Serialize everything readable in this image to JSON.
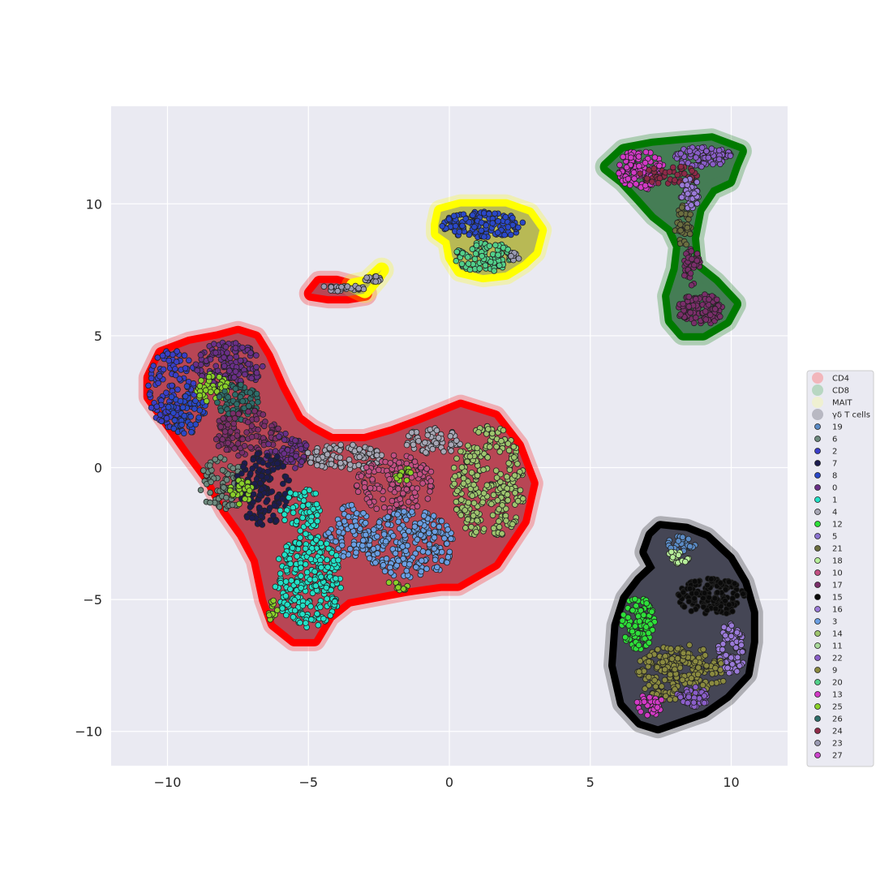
{
  "chart_data": {
    "type": "scatter",
    "title": "",
    "xlabel": "",
    "ylabel": "",
    "xlim": [
      -12,
      12
    ],
    "ylim": [
      -11.3,
      13.7
    ],
    "xticks": [
      -10,
      -5,
      0,
      5,
      10
    ],
    "yticks": [
      -10,
      -5,
      0,
      5,
      10
    ],
    "xtick_labels": [
      "−10",
      "−5",
      "0",
      "5",
      "10"
    ],
    "ytick_labels": [
      "−10",
      "−5",
      "0",
      "5",
      "10"
    ],
    "grid": true,
    "legend_position": "right",
    "outline_groups": [
      {
        "name": "CD4",
        "color": "#ff0000",
        "legend_swatch": "#f2b6bb"
      },
      {
        "name": "CD8",
        "color": "#007a00",
        "legend_swatch": "#b8d7c2"
      },
      {
        "name": "MAIT",
        "color": "#ffff00",
        "legend_swatch": "#eff0d2"
      },
      {
        "name": "γδ T cells",
        "color": "#000000",
        "legend_swatch": "#b8b8c2"
      }
    ],
    "clusters": [
      {
        "name": "19",
        "color": "#5b8bc6"
      },
      {
        "name": "6",
        "color": "#6d8a7e"
      },
      {
        "name": "2",
        "color": "#3a3ec8"
      },
      {
        "name": "7",
        "color": "#1c1c50"
      },
      {
        "name": "8",
        "color": "#2a48c8"
      },
      {
        "name": "0",
        "color": "#6a2f88"
      },
      {
        "name": "1",
        "color": "#22e0c6"
      },
      {
        "name": "4",
        "color": "#a7a7b5"
      },
      {
        "name": "12",
        "color": "#2ee03a"
      },
      {
        "name": "5",
        "color": "#8a72d0"
      },
      {
        "name": "21",
        "color": "#6b6e40"
      },
      {
        "name": "18",
        "color": "#b6ee9a"
      },
      {
        "name": "10",
        "color": "#c24e82"
      },
      {
        "name": "17",
        "color": "#7a2e6a"
      },
      {
        "name": "15",
        "color": "#0a0a0a"
      },
      {
        "name": "16",
        "color": "#9a7ad8"
      },
      {
        "name": "3",
        "color": "#6a9ee2"
      },
      {
        "name": "14",
        "color": "#9ec46e"
      },
      {
        "name": "11",
        "color": "#a8d89a"
      },
      {
        "name": "22",
        "color": "#8a5ec8"
      },
      {
        "name": "9",
        "color": "#8a8a40"
      },
      {
        "name": "20",
        "color": "#52d08a"
      },
      {
        "name": "13",
        "color": "#d23ac6"
      },
      {
        "name": "25",
        "color": "#8ad02a"
      },
      {
        "name": "26",
        "color": "#2e6e6a"
      },
      {
        "name": "24",
        "color": "#8e2a48"
      },
      {
        "name": "23",
        "color": "#9a9ab2"
      },
      {
        "name": "27",
        "color": "#cc44cc"
      }
    ],
    "regions": [
      {
        "group": "CD4",
        "outline": [
          [
            -10.6,
            3.4
          ],
          [
            -10.2,
            4.3
          ],
          [
            -9.2,
            4.7
          ],
          [
            -8.2,
            4.9
          ],
          [
            -7.5,
            5.1
          ],
          [
            -6.9,
            4.9
          ],
          [
            -6.5,
            4.2
          ],
          [
            -6.0,
            3.0
          ],
          [
            -5.4,
            1.8
          ],
          [
            -4.9,
            1.4
          ],
          [
            -4.2,
            1.0
          ],
          [
            -3.0,
            1.0
          ],
          [
            -2.0,
            1.3
          ],
          [
            -1.0,
            1.7
          ],
          [
            0.4,
            2.3
          ],
          [
            1.6,
            1.9
          ],
          [
            2.4,
            0.8
          ],
          [
            2.9,
            -0.6
          ],
          [
            2.6,
            -2.0
          ],
          [
            1.6,
            -3.6
          ],
          [
            0.3,
            -4.4
          ],
          [
            -0.3,
            -4.4
          ],
          [
            -1.6,
            -4.6
          ],
          [
            -2.6,
            -4.8
          ],
          [
            -3.6,
            -5.0
          ],
          [
            -4.3,
            -5.6
          ],
          [
            -4.8,
            -6.5
          ],
          [
            -5.5,
            -6.5
          ],
          [
            -6.2,
            -5.9
          ],
          [
            -6.5,
            -5.0
          ],
          [
            -6.8,
            -3.5
          ],
          [
            -7.3,
            -2.5
          ],
          [
            -7.9,
            -1.6
          ],
          [
            -8.5,
            -0.4
          ],
          [
            -9.2,
            0.6
          ],
          [
            -10.0,
            1.8
          ],
          [
            -10.6,
            2.7
          ]
        ]
      },
      {
        "group": "CD4",
        "outline": [
          [
            -4.9,
            6.6
          ],
          [
            -4.6,
            7.0
          ],
          [
            -4.0,
            7.0
          ],
          [
            -3.3,
            6.8
          ],
          [
            -3.0,
            6.6
          ],
          [
            -3.6,
            6.5
          ],
          [
            -4.3,
            6.5
          ]
        ]
      },
      {
        "group": "MAIT",
        "outline": [
          [
            -3.4,
            6.9
          ],
          [
            -2.9,
            7.0
          ],
          [
            -2.4,
            7.5
          ],
          [
            -2.6,
            7.2
          ],
          [
            -3.0,
            6.7
          ]
        ]
      },
      {
        "group": "MAIT",
        "outline": [
          [
            -0.4,
            9.2
          ],
          [
            -0.3,
            9.7
          ],
          [
            0.4,
            9.9
          ],
          [
            1.2,
            9.9
          ],
          [
            2.0,
            9.9
          ],
          [
            2.8,
            9.6
          ],
          [
            3.2,
            9.0
          ],
          [
            3.0,
            8.2
          ],
          [
            2.6,
            7.8
          ],
          [
            2.0,
            7.4
          ],
          [
            1.2,
            7.3
          ],
          [
            0.4,
            7.5
          ],
          [
            0.1,
            8.0
          ],
          [
            0.0,
            8.6
          ],
          [
            -0.4,
            8.9
          ]
        ]
      },
      {
        "group": "CD8",
        "outline": [
          [
            5.6,
            11.4
          ],
          [
            6.2,
            12.0
          ],
          [
            7.2,
            12.2
          ],
          [
            8.2,
            12.3
          ],
          [
            9.3,
            12.4
          ],
          [
            10.3,
            12.0
          ],
          [
            10.1,
            11.5
          ],
          [
            9.9,
            10.9
          ],
          [
            9.3,
            10.6
          ],
          [
            8.8,
            9.8
          ],
          [
            8.6,
            8.7
          ],
          [
            8.7,
            7.6
          ],
          [
            9.4,
            7.0
          ],
          [
            10.1,
            6.2
          ],
          [
            9.8,
            5.6
          ],
          [
            9.0,
            5.1
          ],
          [
            8.3,
            5.1
          ],
          [
            7.9,
            5.6
          ],
          [
            7.8,
            6.5
          ],
          [
            8.1,
            7.5
          ],
          [
            8.2,
            8.4
          ],
          [
            7.9,
            9.1
          ],
          [
            7.3,
            9.6
          ],
          [
            6.8,
            10.2
          ],
          [
            6.2,
            10.9
          ]
        ]
      },
      {
        "group": "γδ T cells",
        "outline": [
          [
            7.2,
            -2.6
          ],
          [
            7.5,
            -2.3
          ],
          [
            8.4,
            -2.4
          ],
          [
            9.1,
            -2.7
          ],
          [
            9.9,
            -3.5
          ],
          [
            10.4,
            -4.4
          ],
          [
            10.7,
            -5.5
          ],
          [
            10.7,
            -6.6
          ],
          [
            10.5,
            -7.8
          ],
          [
            9.8,
            -8.6
          ],
          [
            9.0,
            -9.2
          ],
          [
            8.2,
            -9.5
          ],
          [
            7.4,
            -9.8
          ],
          [
            6.8,
            -9.6
          ],
          [
            6.2,
            -8.9
          ],
          [
            5.9,
            -7.5
          ],
          [
            6.0,
            -6.0
          ],
          [
            6.3,
            -5.0
          ],
          [
            6.8,
            -4.3
          ],
          [
            7.3,
            -3.8
          ],
          [
            7.0,
            -3.2
          ]
        ]
      }
    ],
    "blobs": [
      {
        "cluster": "2",
        "cx": -9.8,
        "cy": 3.0,
        "rx": 0.9,
        "ry": 1.5,
        "n": 130
      },
      {
        "cluster": "8",
        "cx": -9.3,
        "cy": 2.2,
        "rx": 0.7,
        "ry": 1.0,
        "n": 60
      },
      {
        "cluster": "0",
        "cx": -7.8,
        "cy": 3.9,
        "rx": 1.2,
        "ry": 0.9,
        "n": 150
      },
      {
        "cluster": "25",
        "cx": -8.4,
        "cy": 3.0,
        "rx": 0.6,
        "ry": 0.6,
        "n": 40
      },
      {
        "cluster": "26",
        "cx": -7.5,
        "cy": 2.5,
        "rx": 0.8,
        "ry": 0.7,
        "n": 70
      },
      {
        "cluster": "17",
        "cx": -7.2,
        "cy": 1.3,
        "rx": 1.2,
        "ry": 0.9,
        "n": 110
      },
      {
        "cluster": "0",
        "cx": -5.8,
        "cy": 0.6,
        "rx": 0.8,
        "ry": 0.7,
        "n": 70
      },
      {
        "cluster": "6",
        "cx": -8.0,
        "cy": -0.6,
        "rx": 0.9,
        "ry": 1.0,
        "n": 90
      },
      {
        "cluster": "7",
        "cx": -6.6,
        "cy": -0.8,
        "rx": 1.0,
        "ry": 1.4,
        "n": 140
      },
      {
        "cluster": "25",
        "cx": -7.4,
        "cy": -0.9,
        "rx": 0.4,
        "ry": 0.5,
        "n": 30
      },
      {
        "cluster": "4",
        "cx": -3.7,
        "cy": 0.4,
        "rx": 1.4,
        "ry": 0.5,
        "n": 100
      },
      {
        "cluster": "10",
        "cx": -1.9,
        "cy": -0.6,
        "rx": 1.4,
        "ry": 1.1,
        "n": 140
      },
      {
        "cluster": "4",
        "cx": -0.6,
        "cy": 1.0,
        "rx": 1.0,
        "ry": 0.5,
        "n": 60
      },
      {
        "cluster": "25",
        "cx": -1.6,
        "cy": -0.3,
        "rx": 0.3,
        "ry": 0.3,
        "n": 12
      },
      {
        "cluster": "14",
        "cx": 1.4,
        "cy": -0.6,
        "rx": 1.3,
        "ry": 2.2,
        "n": 260
      },
      {
        "cluster": "3",
        "cx": -1.4,
        "cy": -2.9,
        "rx": 1.6,
        "ry": 1.3,
        "n": 230
      },
      {
        "cluster": "3",
        "cx": -3.6,
        "cy": -2.4,
        "rx": 0.8,
        "ry": 1.0,
        "n": 70
      },
      {
        "cluster": "1",
        "cx": -5.0,
        "cy": -4.3,
        "rx": 1.2,
        "ry": 1.8,
        "n": 260
      },
      {
        "cluster": "1",
        "cx": -5.2,
        "cy": -1.6,
        "rx": 0.8,
        "ry": 0.8,
        "n": 60
      },
      {
        "cluster": "25",
        "cx": -6.3,
        "cy": -5.4,
        "rx": 0.2,
        "ry": 0.4,
        "n": 12
      },
      {
        "cluster": "25",
        "cx": -1.9,
        "cy": -4.5,
        "rx": 0.5,
        "ry": 0.2,
        "n": 12
      },
      {
        "cluster": "23",
        "cx": -3.8,
        "cy": 6.8,
        "rx": 0.8,
        "ry": 0.12,
        "n": 30
      },
      {
        "cluster": "23",
        "cx": -2.7,
        "cy": 7.1,
        "rx": 0.35,
        "ry": 0.2,
        "n": 12
      },
      {
        "cluster": "8",
        "cx": 1.2,
        "cy": 9.2,
        "rx": 1.5,
        "ry": 0.5,
        "n": 140
      },
      {
        "cluster": "20",
        "cx": 1.2,
        "cy": 8.0,
        "rx": 1.0,
        "ry": 0.6,
        "n": 110
      },
      {
        "cluster": "23",
        "cx": 2.3,
        "cy": 8.0,
        "rx": 0.35,
        "ry": 0.2,
        "n": 10
      },
      {
        "cluster": "13",
        "cx": 6.8,
        "cy": 11.3,
        "rx": 0.8,
        "ry": 0.8,
        "n": 110
      },
      {
        "cluster": "22",
        "cx": 9.0,
        "cy": 11.8,
        "rx": 1.0,
        "ry": 0.4,
        "n": 80
      },
      {
        "cluster": "24",
        "cx": 7.8,
        "cy": 11.1,
        "rx": 1.1,
        "ry": 0.35,
        "n": 50
      },
      {
        "cluster": "16",
        "cx": 8.6,
        "cy": 10.4,
        "rx": 0.4,
        "ry": 0.6,
        "n": 40
      },
      {
        "cluster": "21",
        "cx": 8.3,
        "cy": 9.2,
        "rx": 0.3,
        "ry": 0.8,
        "n": 40
      },
      {
        "cluster": "17",
        "cx": 8.6,
        "cy": 7.6,
        "rx": 0.3,
        "ry": 0.7,
        "n": 40
      },
      {
        "cluster": "17",
        "cx": 8.9,
        "cy": 6.0,
        "rx": 0.8,
        "ry": 0.6,
        "n": 110
      },
      {
        "cluster": "19",
        "cx": 8.2,
        "cy": -2.9,
        "rx": 0.6,
        "ry": 0.3,
        "n": 30
      },
      {
        "cluster": "18",
        "cx": 8.1,
        "cy": -3.4,
        "rx": 0.4,
        "ry": 0.3,
        "n": 20
      },
      {
        "cluster": "12",
        "cx": 6.7,
        "cy": -5.9,
        "rx": 0.6,
        "ry": 1.0,
        "n": 110
      },
      {
        "cluster": "15",
        "cx": 9.3,
        "cy": -4.9,
        "rx": 1.2,
        "ry": 0.7,
        "n": 140
      },
      {
        "cluster": "16",
        "cx": 10.0,
        "cy": -6.9,
        "rx": 0.5,
        "ry": 1.0,
        "n": 70
      },
      {
        "cluster": "9",
        "cx": 8.2,
        "cy": -7.8,
        "rx": 1.6,
        "ry": 1.1,
        "n": 230
      },
      {
        "cluster": "22",
        "cx": 8.6,
        "cy": -8.7,
        "rx": 0.6,
        "ry": 0.4,
        "n": 40
      },
      {
        "cluster": "13",
        "cx": 7.1,
        "cy": -9.0,
        "rx": 0.5,
        "ry": 0.4,
        "n": 40
      }
    ]
  }
}
